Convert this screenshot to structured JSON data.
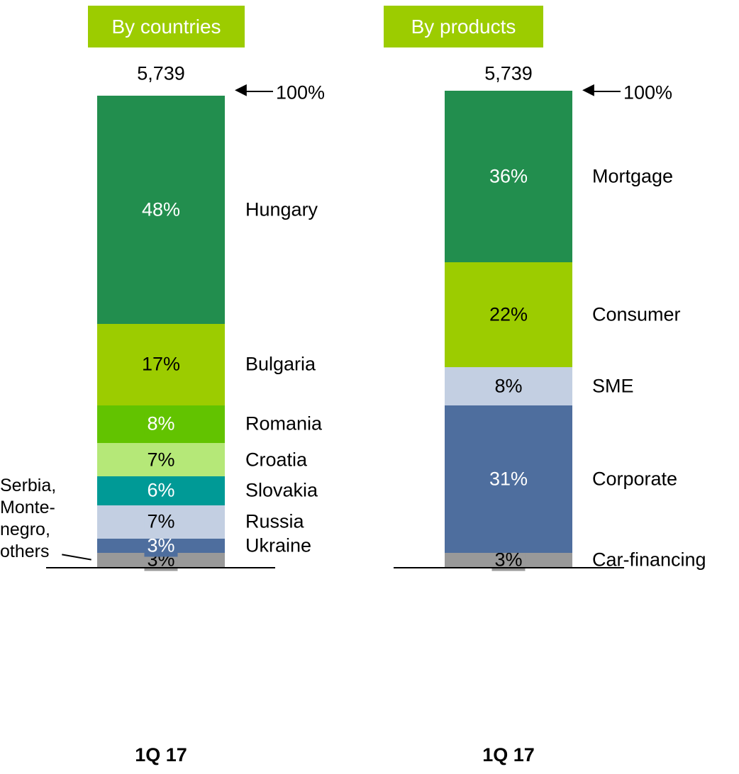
{
  "chart_data": [
    {
      "type": "stacked_bar",
      "title": "By countries",
      "category": "1Q 17",
      "total": 5739,
      "total_label": "5,739",
      "top_annotation": "100%",
      "ylim": [
        0,
        100
      ],
      "series": [
        {
          "name": "Serbia,\nMonte-\nnegro,\nothers",
          "color": "#999999",
          "values": [
            3
          ],
          "value_labels": [
            "3%"
          ]
        },
        {
          "name": "Ukraine",
          "color": "#4e6e9e",
          "values": [
            3
          ],
          "value_labels": [
            "3%"
          ]
        },
        {
          "name": "Russia",
          "color": "#c3cfe2",
          "values": [
            7
          ],
          "value_labels": [
            "7%"
          ]
        },
        {
          "name": "Slovakia",
          "color": "#009a96",
          "values": [
            6
          ],
          "value_labels": [
            "6%"
          ]
        },
        {
          "name": "Croatia",
          "color": "#b5e878",
          "values": [
            7
          ],
          "value_labels": [
            "7%"
          ]
        },
        {
          "name": "Romania",
          "color": "#62c300",
          "values": [
            8
          ],
          "value_labels": [
            "8%"
          ]
        },
        {
          "name": "Bulgaria",
          "color": "#9ccc00",
          "values": [
            17
          ],
          "value_labels": [
            "17%"
          ]
        },
        {
          "name": "Hungary",
          "color": "#228e4e",
          "values": [
            48
          ],
          "value_labels": [
            "48%"
          ]
        }
      ]
    },
    {
      "type": "stacked_bar",
      "title": "By products",
      "category": "1Q 17",
      "total": 5739,
      "total_label": "5,739",
      "top_annotation": "100%",
      "ylim": [
        0,
        100
      ],
      "series": [
        {
          "name": "Car-financing",
          "color": "#999999",
          "values": [
            3
          ],
          "value_labels": [
            "3%"
          ]
        },
        {
          "name": "Corporate",
          "color": "#4e6e9e",
          "values": [
            31
          ],
          "value_labels": [
            "31%"
          ]
        },
        {
          "name": "SME",
          "color": "#c3cfe2",
          "values": [
            8
          ],
          "value_labels": [
            "8%"
          ]
        },
        {
          "name": "Consumer",
          "color": "#9ccc00",
          "values": [
            22
          ],
          "value_labels": [
            "22%"
          ]
        },
        {
          "name": "Mortgage",
          "color": "#228e4e",
          "values": [
            36
          ],
          "value_labels": [
            "36%"
          ]
        }
      ]
    }
  ]
}
